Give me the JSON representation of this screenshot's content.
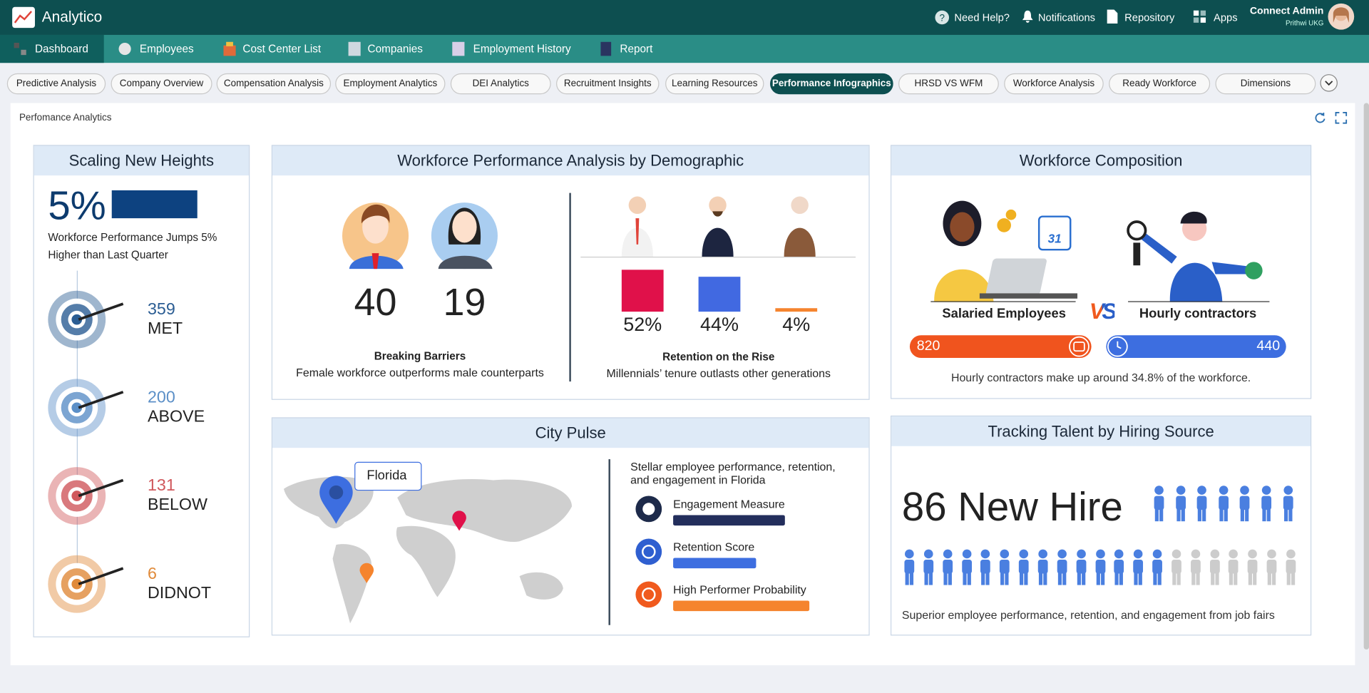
{
  "app": {
    "name": "Analytico"
  },
  "header_actions": [
    "Need Help?",
    "Notifications",
    "Repository",
    "Apps"
  ],
  "user": {
    "name": "Connect Admin",
    "org": "Prithwi UKG"
  },
  "nav_tabs": [
    "Dashboard",
    "Employees",
    "Cost Center List",
    "Companies",
    "Employment History",
    "Report"
  ],
  "sub_tabs": [
    "Predictive Analysis",
    "Company Overview",
    "Compensation Analysis",
    "Employment Analytics",
    "DEI Analytics",
    "Recruitment Insights",
    "Learning Resources",
    "Performance Infographics",
    "HRSD VS WFM",
    "Workforce Analysis",
    "Ready Workforce",
    "Dimensions"
  ],
  "page_title": "Perfomance Analytics",
  "scaling": {
    "title": "Scaling New Heights",
    "headline": "5%",
    "text_lines": [
      "Workforce Performance Jumps 5%",
      "Higher than Last Quarter"
    ],
    "targets": [
      {
        "count": 359,
        "label": "MET",
        "color": "#2b5d93"
      },
      {
        "count": 200,
        "label": "ABOVE",
        "color": "#5b8fc7"
      },
      {
        "count": 131,
        "label": "BELOW",
        "color": "#d0585c"
      },
      {
        "count": 6,
        "label": "DIDNOT",
        "color": "#e08a3a"
      }
    ]
  },
  "demographic": {
    "title": "Workforce Performance Analysis by Demographic",
    "male": 40,
    "female": 19,
    "gender_caption": "Breaking Barriers",
    "gender_text": "Female workforce outperforms male counterparts",
    "retention": [
      {
        "value": 52,
        "label": "52%",
        "color": "#e0114a"
      },
      {
        "value": 44,
        "label": "44%",
        "color": "#4169e1"
      },
      {
        "value": 4,
        "label": "4%",
        "color": "#f5842e"
      }
    ],
    "retention_caption": "Retention on the Rise",
    "retention_text": "Millennials’ tenure outlasts other generations"
  },
  "composition": {
    "title": "Workforce Composition",
    "left_label": "Salaried Employees",
    "vs": "VS",
    "right_label": "Hourly contractors",
    "salaried": 820,
    "hourly": 440,
    "note": "Hourly contractors make up around 34.8% of the workforce."
  },
  "city_pulse": {
    "title": "City Pulse",
    "callout": "Florida",
    "text_lines": [
      "Stellar employee performance, retention,",
      "and engagement in Florida"
    ],
    "metrics": [
      "Engagement Measure",
      "Retention Score",
      "High Performer Probability"
    ]
  },
  "hiring": {
    "title": "Tracking Talent by Hiring Source",
    "headline": "86 New Hire",
    "text": "Superior employee performance, retention, and engagement from job fairs"
  }
}
